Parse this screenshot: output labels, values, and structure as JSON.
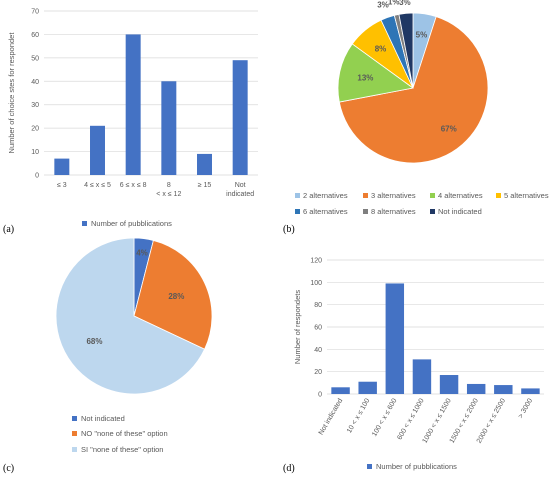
{
  "colors": {
    "bar": "#4472C4",
    "grid": "#d9d9d9",
    "pie_b": [
      "#9DC3E6",
      "#ED7D31",
      "#92D050",
      "#FFC000",
      "#2E75B6",
      "#7F7F7F",
      "#203864"
    ],
    "pie_c": [
      "#4472C4",
      "#ED7D31",
      "#BDD7EE"
    ]
  },
  "chart_data": [
    {
      "type": "bar",
      "panel": "(a)",
      "categories": [
        "≤ 3",
        "4 ≤ x ≤ 5",
        "6 ≤ x ≤ 8",
        "8 < x ≤ 12",
        "≥ 15",
        "Not indicated"
      ],
      "series": [
        {
          "name": "Number of pubblications",
          "values": [
            7,
            21,
            60,
            40,
            9,
            49
          ]
        }
      ],
      "ylabel": "Number of choice stes for respondet",
      "ylim": [
        0,
        70
      ],
      "yticks": [
        0,
        10,
        20,
        30,
        40,
        50,
        60,
        70
      ],
      "grid": true,
      "legend": "bottom"
    },
    {
      "type": "pie",
      "panel": "(b)",
      "labels": [
        "2 alternatives",
        "3 alternatives",
        "4 alternatives",
        "5 alternatives",
        "6 alternatives",
        "8 alternatives",
        "Not indicated"
      ],
      "values": [
        5,
        67,
        13,
        8,
        3,
        1,
        3
      ],
      "data_labels": [
        "5%",
        "67%",
        "13%",
        "8%",
        "3%",
        "1%",
        "3%"
      ],
      "legend": "bottom"
    },
    {
      "type": "pie",
      "panel": "(c)",
      "labels": [
        "Not indicated",
        "NO \"none of these\" option",
        "SI \"none of these\" option"
      ],
      "values": [
        4,
        28,
        68
      ],
      "data_labels": [
        "4%",
        "28%",
        "68%"
      ],
      "legend": "bottom"
    },
    {
      "type": "bar",
      "panel": "(d)",
      "categories": [
        "Not indicated",
        "10 < x ≤ 100",
        "100 < x ≤ 600",
        "600 < x ≤ 1000",
        "1000 < x ≤ 1500",
        "1500 < x ≤ 2000",
        "2000 < x ≤ 2500",
        "> 3000"
      ],
      "series": [
        {
          "name": "Number of pubblications",
          "values": [
            6,
            11,
            99,
            31,
            17,
            9,
            8,
            5
          ]
        }
      ],
      "ylabel": "Number of respondets",
      "ylim": [
        0,
        120
      ],
      "yticks": [
        0,
        20,
        40,
        60,
        80,
        100,
        120
      ],
      "grid": true,
      "legend": "bottom"
    }
  ]
}
